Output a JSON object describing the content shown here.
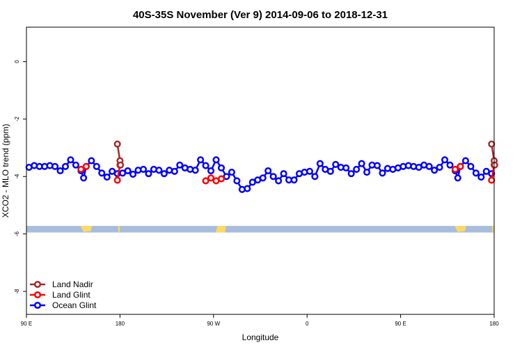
{
  "chart_data": {
    "type": "line",
    "title": "40S-35S November (Ver 9)   2014-09-06 to 2018-12-31",
    "xlabel": "Longitude",
    "ylabel": "XCO2 - MLO trend (ppm)",
    "xlim": [
      90,
      540
    ],
    "ylim": [
      -8.8,
      1.2
    ],
    "xticks": [
      {
        "value": 90,
        "label": "90 E"
      },
      {
        "value": 180,
        "label": "180"
      },
      {
        "value": 270,
        "label": "90 W"
      },
      {
        "value": 360,
        "label": "0"
      },
      {
        "value": 450,
        "label": "90 E"
      },
      {
        "value": 540,
        "label": "180"
      }
    ],
    "yticks": [
      {
        "value": 0,
        "label": "0"
      },
      {
        "value": -2,
        "label": "-2"
      },
      {
        "value": -4,
        "label": "-4"
      },
      {
        "value": -6,
        "label": "-6"
      },
      {
        "value": -8,
        "label": "-8"
      }
    ],
    "grid": false,
    "legend_position": "bottom-left",
    "map_strip": {
      "ymin": -5.95,
      "ymax": -5.72,
      "ocean_color": "#a7bddb",
      "land_color": "#ffd966"
    },
    "series": [
      {
        "name": "Land Nadir",
        "color": "#a52a2a",
        "segments": [
          {
            "x": [
              177.5,
              180,
              180.5
            ],
            "y": [
              -2.87,
              -3.45,
              -3.6
            ]
          },
          {
            "x": [
              537.5,
              540,
              540.5
            ],
            "y": [
              -2.87,
              -3.45,
              -3.6
            ]
          }
        ]
      },
      {
        "name": "Land Glint",
        "color": "#ff0000",
        "segments": [
          {
            "x": [
              142.5,
              147.5
            ],
            "y": [
              -3.75,
              -3.65
            ]
          },
          {
            "x": [
              177.5,
              180
            ],
            "y": [
              -4.13,
              -3.6
            ]
          },
          {
            "x": [
              262.5,
              267.5,
              272.5,
              277.5
            ],
            "y": [
              -4.15,
              -4.05,
              -4.15,
              -4.08
            ]
          },
          {
            "x": [
              502.5,
              507.5
            ],
            "y": [
              -3.75,
              -3.65
            ]
          },
          {
            "x": [
              537.5,
              540
            ],
            "y": [
              -4.13,
              -3.6
            ]
          }
        ]
      },
      {
        "name": "Ocean Glint",
        "color": "#0000ff",
        "segments": [
          {
            "x": [
              92.5,
              97.5,
              102.5,
              107.5,
              112.5,
              117.5,
              122.5,
              127.5,
              132.5,
              137.5,
              142.5,
              145,
              147.5,
              152.5,
              157.5,
              162.5,
              167.5,
              172.5,
              177.5,
              182.5,
              187.5,
              192.5,
              197.5,
              202.5,
              207.5,
              212.5,
              217.5,
              222.5,
              227.5,
              232.5,
              237.5,
              242.5,
              247.5,
              252.5,
              257.5,
              262.5,
              267.5,
              272.5,
              277.5,
              282.5,
              287.5,
              292.5,
              297.5,
              302.5,
              307.5,
              312.5,
              317.5,
              322.5,
              327.5,
              332.5,
              337.5,
              342.5,
              347.5,
              352.5,
              357.5,
              362.5,
              367.5,
              372.5,
              377.5,
              382.5,
              387.5,
              392.5,
              397.5,
              402.5,
              407.5,
              412.5,
              417.5,
              422.5,
              427.5,
              432.5,
              437.5,
              442.5,
              447.5,
              452.5,
              457.5,
              462.5,
              467.5,
              472.5,
              477.5,
              482.5,
              487.5,
              492.5,
              497.5,
              502.5,
              505,
              507.5,
              512.5,
              517.5,
              522.5,
              527.5,
              532.5,
              537.5
            ],
            "y": [
              -3.68,
              -3.62,
              -3.65,
              -3.65,
              -3.62,
              -3.65,
              -3.8,
              -3.65,
              -3.42,
              -3.6,
              -3.8,
              -4.05,
              -3.65,
              -3.45,
              -3.65,
              -3.88,
              -4.02,
              -3.82,
              -3.9,
              -3.88,
              -3.8,
              -3.92,
              -3.78,
              -3.75,
              -3.9,
              -3.75,
              -3.78,
              -3.9,
              -3.78,
              -3.82,
              -3.6,
              -3.7,
              -3.75,
              -3.78,
              -3.42,
              -3.62,
              -3.8,
              -3.42,
              -3.7,
              -4.0,
              -3.85,
              -4.15,
              -4.45,
              -4.42,
              -4.2,
              -4.12,
              -4.05,
              -3.8,
              -4.0,
              -4.15,
              -3.9,
              -4.12,
              -4.12,
              -3.9,
              -3.85,
              -3.82,
              -4.0,
              -3.55,
              -3.75,
              -3.82,
              -3.58,
              -3.68,
              -3.7,
              -3.9,
              -3.75,
              -3.55,
              -3.85,
              -3.6,
              -3.62,
              -3.88,
              -3.72,
              -3.75,
              -3.7,
              -3.65,
              -3.62,
              -3.65,
              -3.68,
              -3.6,
              -3.65,
              -3.78,
              -3.68,
              -3.42,
              -3.6,
              -3.8,
              -4.05,
              -3.65,
              -3.45,
              -3.65,
              -3.88,
              -4.02,
              -3.82,
              -3.9
            ]
          }
        ]
      }
    ]
  }
}
